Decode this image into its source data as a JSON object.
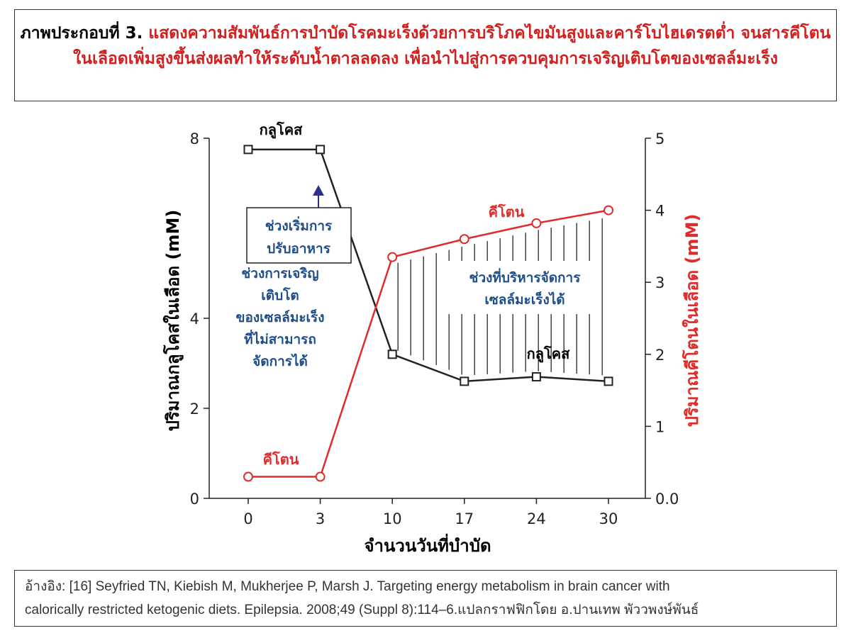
{
  "header": {
    "figure_label": "ภาพประกอบที่ 3.",
    "figure_text": "แสดงความสัมพันธ์การบำบัดโรคมะเร็งด้วยการบริโภคไขมันสูงและคาร์โบไฮเดรตต่ำ จนสารคีโตนในเลือดเพิ่มสูงขึ้นส่งผลทำให้ระดับน้ำตาลลดลง เพื่อนำไปสู่การควบคุมการเจริญเติบโตของเซลล์มะเร็ง"
  },
  "chart_data": {
    "type": "line",
    "x": [
      0,
      3,
      10,
      17,
      24,
      30
    ],
    "x_tick_labels": [
      "0",
      "3",
      "10",
      "17",
      "24",
      "30"
    ],
    "xlabel": "จำนวนวันที่บำบัด",
    "ylabel_left": "ปริมาณกลูโคสในเลือด (mM)",
    "ylabel_right": "ปริมาณคีโตนในเลือด (mM)",
    "ylim_left": [
      0,
      8
    ],
    "ylim_right": [
      0,
      5
    ],
    "y_ticks_left": [
      "0",
      "2",
      "4",
      "8"
    ],
    "y_ticks_right": [
      "0.0",
      "1",
      "2",
      "3",
      "4",
      "5"
    ],
    "grid": false,
    "series": [
      {
        "name": "กลูโคส",
        "axis": "left",
        "color": "#222222",
        "marker": "square",
        "values": [
          7.75,
          7.75,
          3.2,
          2.6,
          2.7,
          2.6
        ]
      },
      {
        "name": "คีโตน",
        "axis": "right",
        "color": "#e02b2b",
        "marker": "circle",
        "values": [
          0.3,
          0.3,
          3.35,
          3.6,
          3.82,
          4.0
        ]
      }
    ],
    "series_labels": {
      "glucose_top": "กลูโคส",
      "glucose_bottom": "กลูโคส",
      "ketone_left": "คีโตน",
      "ketone_right": "คีโตน"
    },
    "annotations": {
      "diet_start_box": [
        "ช่วงเริ่มการ",
        "ปรับอาหาร"
      ],
      "uncontrolled_growth": [
        "ช่วงการเจริญ",
        "เติบโต",
        "ของเซลล์มะเร็ง",
        "ที่ไม่สามารถ",
        "จัดการได้"
      ],
      "manageable_zone": [
        "ช่วงที่บริหารจัดการ",
        "เซลล์มะเร็งได้"
      ]
    },
    "colors": {
      "axis": "#222222",
      "annotation_blue": "#1f4e8a",
      "arrow": "#2d2f8f",
      "ketone": "#e02b2b",
      "hatch": "#333333"
    }
  },
  "reference": {
    "line1": "อ้างอิง: [16] Seyfried TN, Kiebish M, Mukherjee P, Marsh J. Targeting energy metabolism in brain cancer with",
    "line2": "calorically restricted ketogenic diets. Epilepsia. 2008;49 (Suppl 8):114–6.แปลกราฟฟิกโดย อ.ปานเทพ พัววพงษ์พันธ์"
  }
}
